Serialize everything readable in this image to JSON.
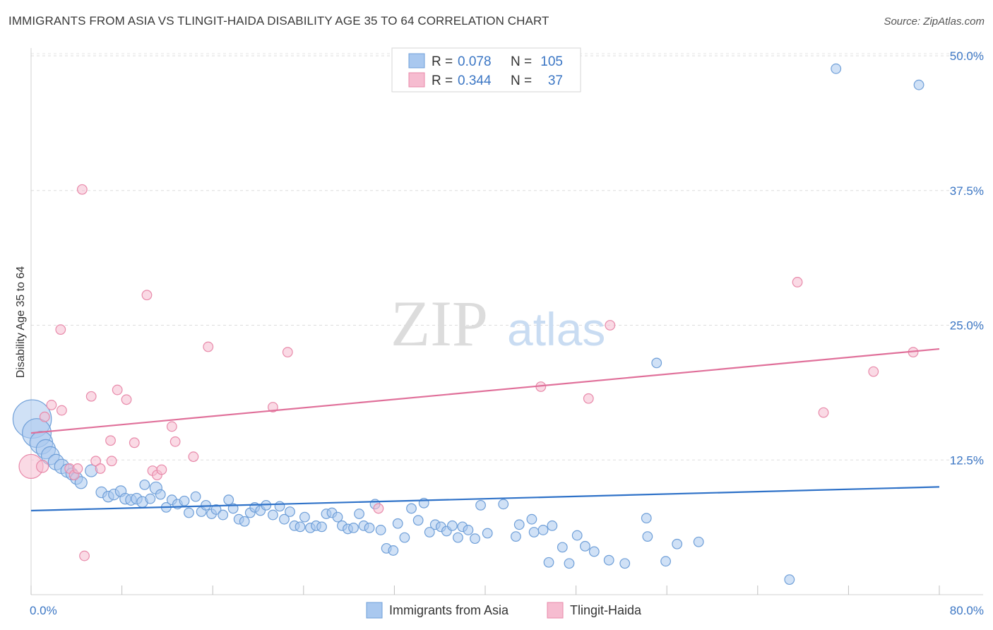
{
  "header": {
    "title": "IMMIGRANTS FROM ASIA VS TLINGIT-HAIDA DISABILITY AGE 35 TO 64 CORRELATION CHART",
    "source": "Source: ZipAtlas.com"
  },
  "watermark": {
    "zip": "ZIP",
    "atlas": "atlas"
  },
  "chart_data": {
    "type": "scatter",
    "title": "IMMIGRANTS FROM ASIA VS TLINGIT-HAIDA DISABILITY AGE 35 TO 64 CORRELATION CHART",
    "xlabel": "",
    "ylabel": "Disability Age 35 to 64",
    "xlim": [
      0,
      80
    ],
    "ylim": [
      0,
      50
    ],
    "x_tick_labels": [
      "0.0%",
      "80.0%"
    ],
    "y_ticks": [
      12.5,
      25.0,
      37.5,
      50.0
    ],
    "y_tick_labels": [
      "12.5%",
      "25.0%",
      "37.5%",
      "50.0%"
    ],
    "grid": "horizontal dashed",
    "legend_position": "top-center",
    "colors": {
      "asia_fill": "#a9c8ef",
      "asia_stroke": "#6f9fd8",
      "asia_line": "#2f72c8",
      "tlingit_fill": "#f6bcd0",
      "tlingit_stroke": "#e88aaa",
      "tlingit_line": "#e0709a",
      "tick_text": "#3b76c4"
    },
    "legend": {
      "r_label": "R =",
      "n_label": "N ="
    },
    "series": [
      {
        "name": "Immigrants from Asia",
        "r": "0.078",
        "n": "105",
        "trend": [
          [
            0,
            7.8
          ],
          [
            80,
            10.0
          ]
        ],
        "points": [
          [
            0.1,
            16.3,
            3.2
          ],
          [
            0.5,
            15.0,
            2.4
          ],
          [
            0.9,
            14.1,
            1.9
          ],
          [
            1.3,
            13.5,
            1.6
          ],
          [
            1.7,
            12.9,
            1.5
          ],
          [
            2.2,
            12.3,
            1.3
          ],
          [
            2.7,
            11.9,
            1.2
          ],
          [
            3.2,
            11.5,
            1.1
          ],
          [
            3.6,
            11.2,
            1.0
          ],
          [
            4.0,
            10.8,
            1.0
          ],
          [
            4.4,
            10.4,
            1.0
          ],
          [
            5.3,
            11.5,
            1.0
          ],
          [
            6.2,
            9.5,
            0.9
          ],
          [
            6.8,
            9.1,
            0.9
          ],
          [
            7.3,
            9.3,
            0.9
          ],
          [
            7.9,
            9.6,
            0.9
          ],
          [
            8.3,
            8.9,
            0.9
          ],
          [
            8.8,
            8.8,
            0.9
          ],
          [
            9.3,
            8.9,
            0.9
          ],
          [
            9.8,
            8.6,
            0.9
          ],
          [
            10.0,
            10.2,
            0.8
          ],
          [
            10.5,
            8.9,
            0.8
          ],
          [
            11.0,
            9.9,
            1.0
          ],
          [
            11.4,
            9.3,
            0.8
          ],
          [
            11.9,
            8.1,
            0.8
          ],
          [
            12.4,
            8.8,
            0.8
          ],
          [
            12.9,
            8.4,
            0.8
          ],
          [
            13.5,
            8.7,
            0.8
          ],
          [
            13.9,
            7.6,
            0.8
          ],
          [
            14.5,
            9.1,
            0.8
          ],
          [
            15.0,
            7.7,
            0.8
          ],
          [
            15.4,
            8.3,
            0.8
          ],
          [
            15.9,
            7.5,
            0.8
          ],
          [
            16.3,
            7.9,
            0.8
          ],
          [
            16.9,
            7.4,
            0.8
          ],
          [
            17.4,
            8.8,
            0.8
          ],
          [
            17.8,
            8.0,
            0.8
          ],
          [
            18.3,
            7.0,
            0.8
          ],
          [
            18.8,
            6.8,
            0.8
          ],
          [
            19.3,
            7.6,
            0.8
          ],
          [
            19.7,
            8.1,
            0.8
          ],
          [
            20.2,
            7.8,
            0.8
          ],
          [
            20.7,
            8.3,
            0.8
          ],
          [
            21.3,
            7.4,
            0.8
          ],
          [
            21.9,
            8.2,
            0.8
          ],
          [
            22.3,
            7.0,
            0.8
          ],
          [
            22.8,
            7.7,
            0.8
          ],
          [
            23.2,
            6.4,
            0.8
          ],
          [
            23.7,
            6.3,
            0.8
          ],
          [
            24.1,
            7.2,
            0.8
          ],
          [
            24.6,
            6.2,
            0.8
          ],
          [
            25.1,
            6.4,
            0.8
          ],
          [
            25.6,
            6.3,
            0.8
          ],
          [
            26.0,
            7.5,
            0.8
          ],
          [
            26.5,
            7.6,
            0.8
          ],
          [
            27.0,
            7.2,
            0.8
          ],
          [
            27.4,
            6.4,
            0.8
          ],
          [
            27.9,
            6.1,
            0.8
          ],
          [
            28.4,
            6.2,
            0.8
          ],
          [
            28.9,
            7.5,
            0.8
          ],
          [
            29.3,
            6.4,
            0.8
          ],
          [
            29.8,
            6.2,
            0.8
          ],
          [
            30.3,
            8.4,
            0.8
          ],
          [
            30.8,
            6.0,
            0.8
          ],
          [
            31.3,
            4.3,
            0.8
          ],
          [
            31.9,
            4.1,
            0.8
          ],
          [
            32.3,
            6.6,
            0.8
          ],
          [
            32.9,
            5.3,
            0.8
          ],
          [
            33.5,
            8.0,
            0.8
          ],
          [
            34.1,
            6.9,
            0.8
          ],
          [
            34.6,
            8.5,
            0.8
          ],
          [
            35.1,
            5.8,
            0.8
          ],
          [
            35.6,
            6.5,
            0.8
          ],
          [
            36.1,
            6.3,
            0.8
          ],
          [
            36.6,
            5.9,
            0.8
          ],
          [
            37.1,
            6.4,
            0.8
          ],
          [
            37.6,
            5.3,
            0.8
          ],
          [
            38.0,
            6.3,
            0.8
          ],
          [
            38.5,
            6.0,
            0.8
          ],
          [
            39.1,
            5.2,
            0.8
          ],
          [
            39.6,
            8.3,
            0.8
          ],
          [
            40.2,
            5.7,
            0.8
          ],
          [
            41.6,
            8.4,
            0.8
          ],
          [
            42.7,
            5.4,
            0.8
          ],
          [
            43.0,
            6.5,
            0.8
          ],
          [
            44.1,
            7.0,
            0.8
          ],
          [
            44.3,
            5.8,
            0.8
          ],
          [
            45.1,
            6.0,
            0.8
          ],
          [
            45.6,
            3.0,
            0.8
          ],
          [
            45.9,
            6.4,
            0.8
          ],
          [
            46.8,
            4.4,
            0.8
          ],
          [
            47.4,
            2.9,
            0.8
          ],
          [
            48.1,
            5.5,
            0.8
          ],
          [
            48.8,
            4.5,
            0.8
          ],
          [
            49.6,
            4.0,
            0.8
          ],
          [
            50.9,
            3.2,
            0.8
          ],
          [
            52.3,
            2.9,
            0.8
          ],
          [
            54.2,
            7.1,
            0.8
          ],
          [
            54.3,
            5.4,
            0.8
          ],
          [
            55.1,
            21.5,
            0.8
          ],
          [
            55.9,
            3.1,
            0.8
          ],
          [
            56.9,
            4.7,
            0.8
          ],
          [
            58.8,
            4.9,
            0.8
          ],
          [
            66.8,
            1.4,
            0.8
          ],
          [
            70.9,
            48.8,
            0.8
          ],
          [
            78.2,
            47.3,
            0.8
          ]
        ]
      },
      {
        "name": "Tlingit-Haida",
        "r": "0.344",
        "n": "37",
        "trend": [
          [
            0,
            15.0
          ],
          [
            80,
            22.8
          ]
        ],
        "points": [
          [
            0.0,
            11.9,
            2.0
          ],
          [
            1.0,
            11.9,
            1.0
          ],
          [
            1.2,
            16.5,
            0.8
          ],
          [
            1.8,
            17.6,
            0.8
          ],
          [
            2.6,
            24.6,
            0.8
          ],
          [
            2.7,
            17.1,
            0.8
          ],
          [
            3.4,
            11.7,
            0.8
          ],
          [
            3.8,
            11.1,
            0.8
          ],
          [
            4.1,
            11.7,
            0.8
          ],
          [
            4.5,
            37.6,
            0.8
          ],
          [
            4.7,
            3.6,
            0.8
          ],
          [
            5.3,
            18.4,
            0.8
          ],
          [
            5.7,
            12.4,
            0.8
          ],
          [
            6.1,
            11.7,
            0.8
          ],
          [
            7.0,
            14.3,
            0.8
          ],
          [
            7.1,
            12.4,
            0.8
          ],
          [
            7.6,
            19.0,
            0.8
          ],
          [
            8.4,
            18.1,
            0.8
          ],
          [
            9.1,
            14.1,
            0.8
          ],
          [
            10.2,
            27.8,
            0.8
          ],
          [
            10.7,
            11.5,
            0.8
          ],
          [
            11.1,
            11.1,
            0.8
          ],
          [
            11.5,
            11.6,
            0.8
          ],
          [
            12.4,
            15.6,
            0.8
          ],
          [
            12.7,
            14.2,
            0.8
          ],
          [
            14.3,
            12.8,
            0.8
          ],
          [
            15.6,
            23.0,
            0.8
          ],
          [
            21.3,
            17.4,
            0.8
          ],
          [
            22.6,
            22.5,
            0.8
          ],
          [
            30.6,
            8.0,
            0.8
          ],
          [
            44.9,
            19.3,
            0.8
          ],
          [
            49.1,
            18.2,
            0.8
          ],
          [
            51.0,
            25.0,
            0.8
          ],
          [
            67.5,
            29.0,
            0.8
          ],
          [
            69.8,
            16.9,
            0.8
          ],
          [
            74.2,
            20.7,
            0.8
          ],
          [
            77.7,
            22.5,
            0.8
          ]
        ]
      }
    ]
  }
}
